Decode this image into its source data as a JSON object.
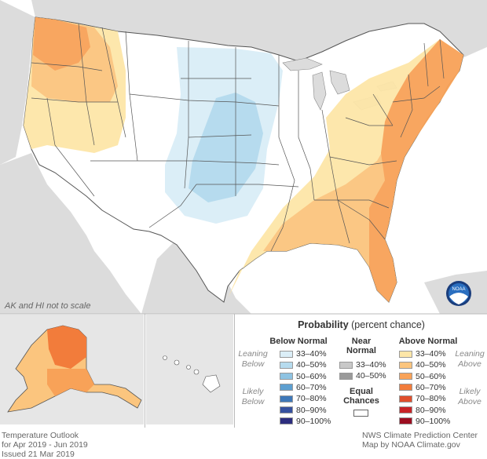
{
  "map": {
    "scale_note": "AK and HI not to scale",
    "logo_text": "NOAA"
  },
  "legend": {
    "title_bold": "Probability",
    "title_rest": " (percent chance)",
    "below_header": "Below Normal",
    "near_header_1": "Near",
    "near_header_2": "Normal",
    "above_header": "Above Normal",
    "leaning": "Leaning",
    "below_word": "Below",
    "above_word": "Above",
    "likely": "Likely",
    "equal_1": "Equal",
    "equal_2": "Chances",
    "below_items": [
      {
        "label": "33–40%",
        "color": "#dbeef7"
      },
      {
        "label": "40–50%",
        "color": "#b6dbee"
      },
      {
        "label": "50–60%",
        "color": "#8ec3e2"
      },
      {
        "label": "60–70%",
        "color": "#5d9fd0"
      },
      {
        "label": "70–80%",
        "color": "#3f78b8"
      },
      {
        "label": "80–90%",
        "color": "#36519f"
      },
      {
        "label": "90–100%",
        "color": "#2c2d7e"
      }
    ],
    "near_items": [
      {
        "label": "33–40%",
        "color": "#c8c8c8"
      },
      {
        "label": "40–50%",
        "color": "#9a9a9a"
      }
    ],
    "above_items": [
      {
        "label": "33–40%",
        "color": "#fde6a8"
      },
      {
        "label": "40–50%",
        "color": "#fbc57e"
      },
      {
        "label": "50–60%",
        "color": "#f8a258"
      },
      {
        "label": "60–70%",
        "color": "#f27c3b"
      },
      {
        "label": "70–80%",
        "color": "#e04f2c"
      },
      {
        "label": "80–90%",
        "color": "#c82327"
      },
      {
        "label": "90–100%",
        "color": "#9c0d20"
      }
    ],
    "equal_color": "#ffffff"
  },
  "footer": {
    "left_line1": "Temperature Outlook",
    "left_line2": "for Apr 2019 - Jun 2019",
    "left_line3": "Issued 21 Mar 2019",
    "right_line1": "NWS Climate Prediction Center",
    "right_line2": "Map by NOAA Climate.gov"
  }
}
